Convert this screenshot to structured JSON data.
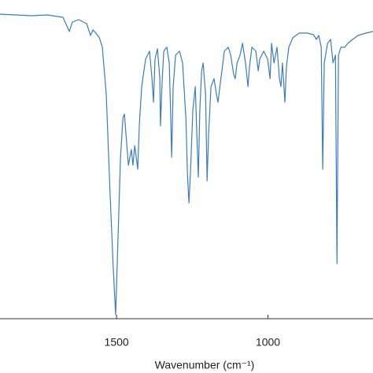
{
  "chart_data": {
    "type": "line",
    "x_label": "Wavenumber (cm⁻¹)",
    "xlim": [
      1885,
      653
    ],
    "xticks": [
      1500,
      1000
    ],
    "ylim": [
      0,
      100
    ],
    "color": "#3a7bc4",
    "x": [
      1885,
      1833,
      1781,
      1729,
      1677,
      1656,
      1646,
      1625,
      1599,
      1586,
      1578,
      1568,
      1557,
      1547,
      1534,
      1521,
      1511,
      1503,
      1495,
      1487,
      1479,
      1474,
      1469,
      1461,
      1456,
      1451,
      1446,
      1440,
      1435,
      1430,
      1425,
      1417,
      1404,
      1391,
      1383,
      1378,
      1373,
      1365,
      1357,
      1355,
      1349,
      1344,
      1334,
      1326,
      1321,
      1318,
      1313,
      1305,
      1292,
      1282,
      1271,
      1266,
      1261,
      1256,
      1248,
      1240,
      1235,
      1230,
      1225,
      1219,
      1214,
      1206,
      1201,
      1196,
      1188,
      1178,
      1170,
      1165,
      1157,
      1144,
      1131,
      1123,
      1113,
      1108,
      1102,
      1092,
      1084,
      1074,
      1066,
      1061,
      1053,
      1040,
      1032,
      1027,
      1014,
      1001,
      993,
      988,
      980,
      970,
      962,
      957,
      952,
      944,
      939,
      931,
      918,
      897,
      871,
      850,
      840,
      832,
      824,
      819,
      814,
      803,
      793,
      785,
      777,
      772,
      767,
      759,
      746,
      736,
      720,
      702,
      676,
      653
    ],
    "values": [
      96.75,
      96.5,
      96.25,
      96.5,
      95.75,
      91.25,
      94.25,
      95,
      93.75,
      90,
      91.75,
      90.75,
      89.25,
      86.25,
      71.25,
      38.75,
      16.25,
      1.25,
      26.25,
      51.25,
      63.75,
      65,
      58.75,
      48.75,
      51.25,
      53.75,
      48.75,
      55,
      51.25,
      47.5,
      61.25,
      73.75,
      82.5,
      85,
      76.25,
      68.75,
      82.5,
      85.75,
      76.25,
      61.25,
      76.25,
      85,
      86.25,
      81.25,
      63.75,
      51.25,
      73.75,
      83.75,
      85,
      81.25,
      63.75,
      46.25,
      36.75,
      46.25,
      66.25,
      73.75,
      58.75,
      45,
      66.25,
      78.75,
      81.25,
      71.25,
      43.75,
      58.75,
      73.75,
      76.25,
      71.25,
      68.75,
      75,
      85,
      86.25,
      83.75,
      77.5,
      76.25,
      81.25,
      83.75,
      87.5,
      81.25,
      73.75,
      80,
      86.25,
      85,
      78.75,
      82.5,
      85,
      82.5,
      76.25,
      87.5,
      81.25,
      86.25,
      76.25,
      73.75,
      81.25,
      68.75,
      80,
      86.25,
      89.25,
      90.75,
      90.75,
      90.25,
      88.75,
      90,
      86.25,
      47.5,
      81.25,
      87.5,
      88.75,
      81.25,
      83.75,
      17.5,
      83.75,
      86.25,
      86.25,
      87.5,
      88.75,
      90,
      90.75,
      91.25
    ]
  }
}
